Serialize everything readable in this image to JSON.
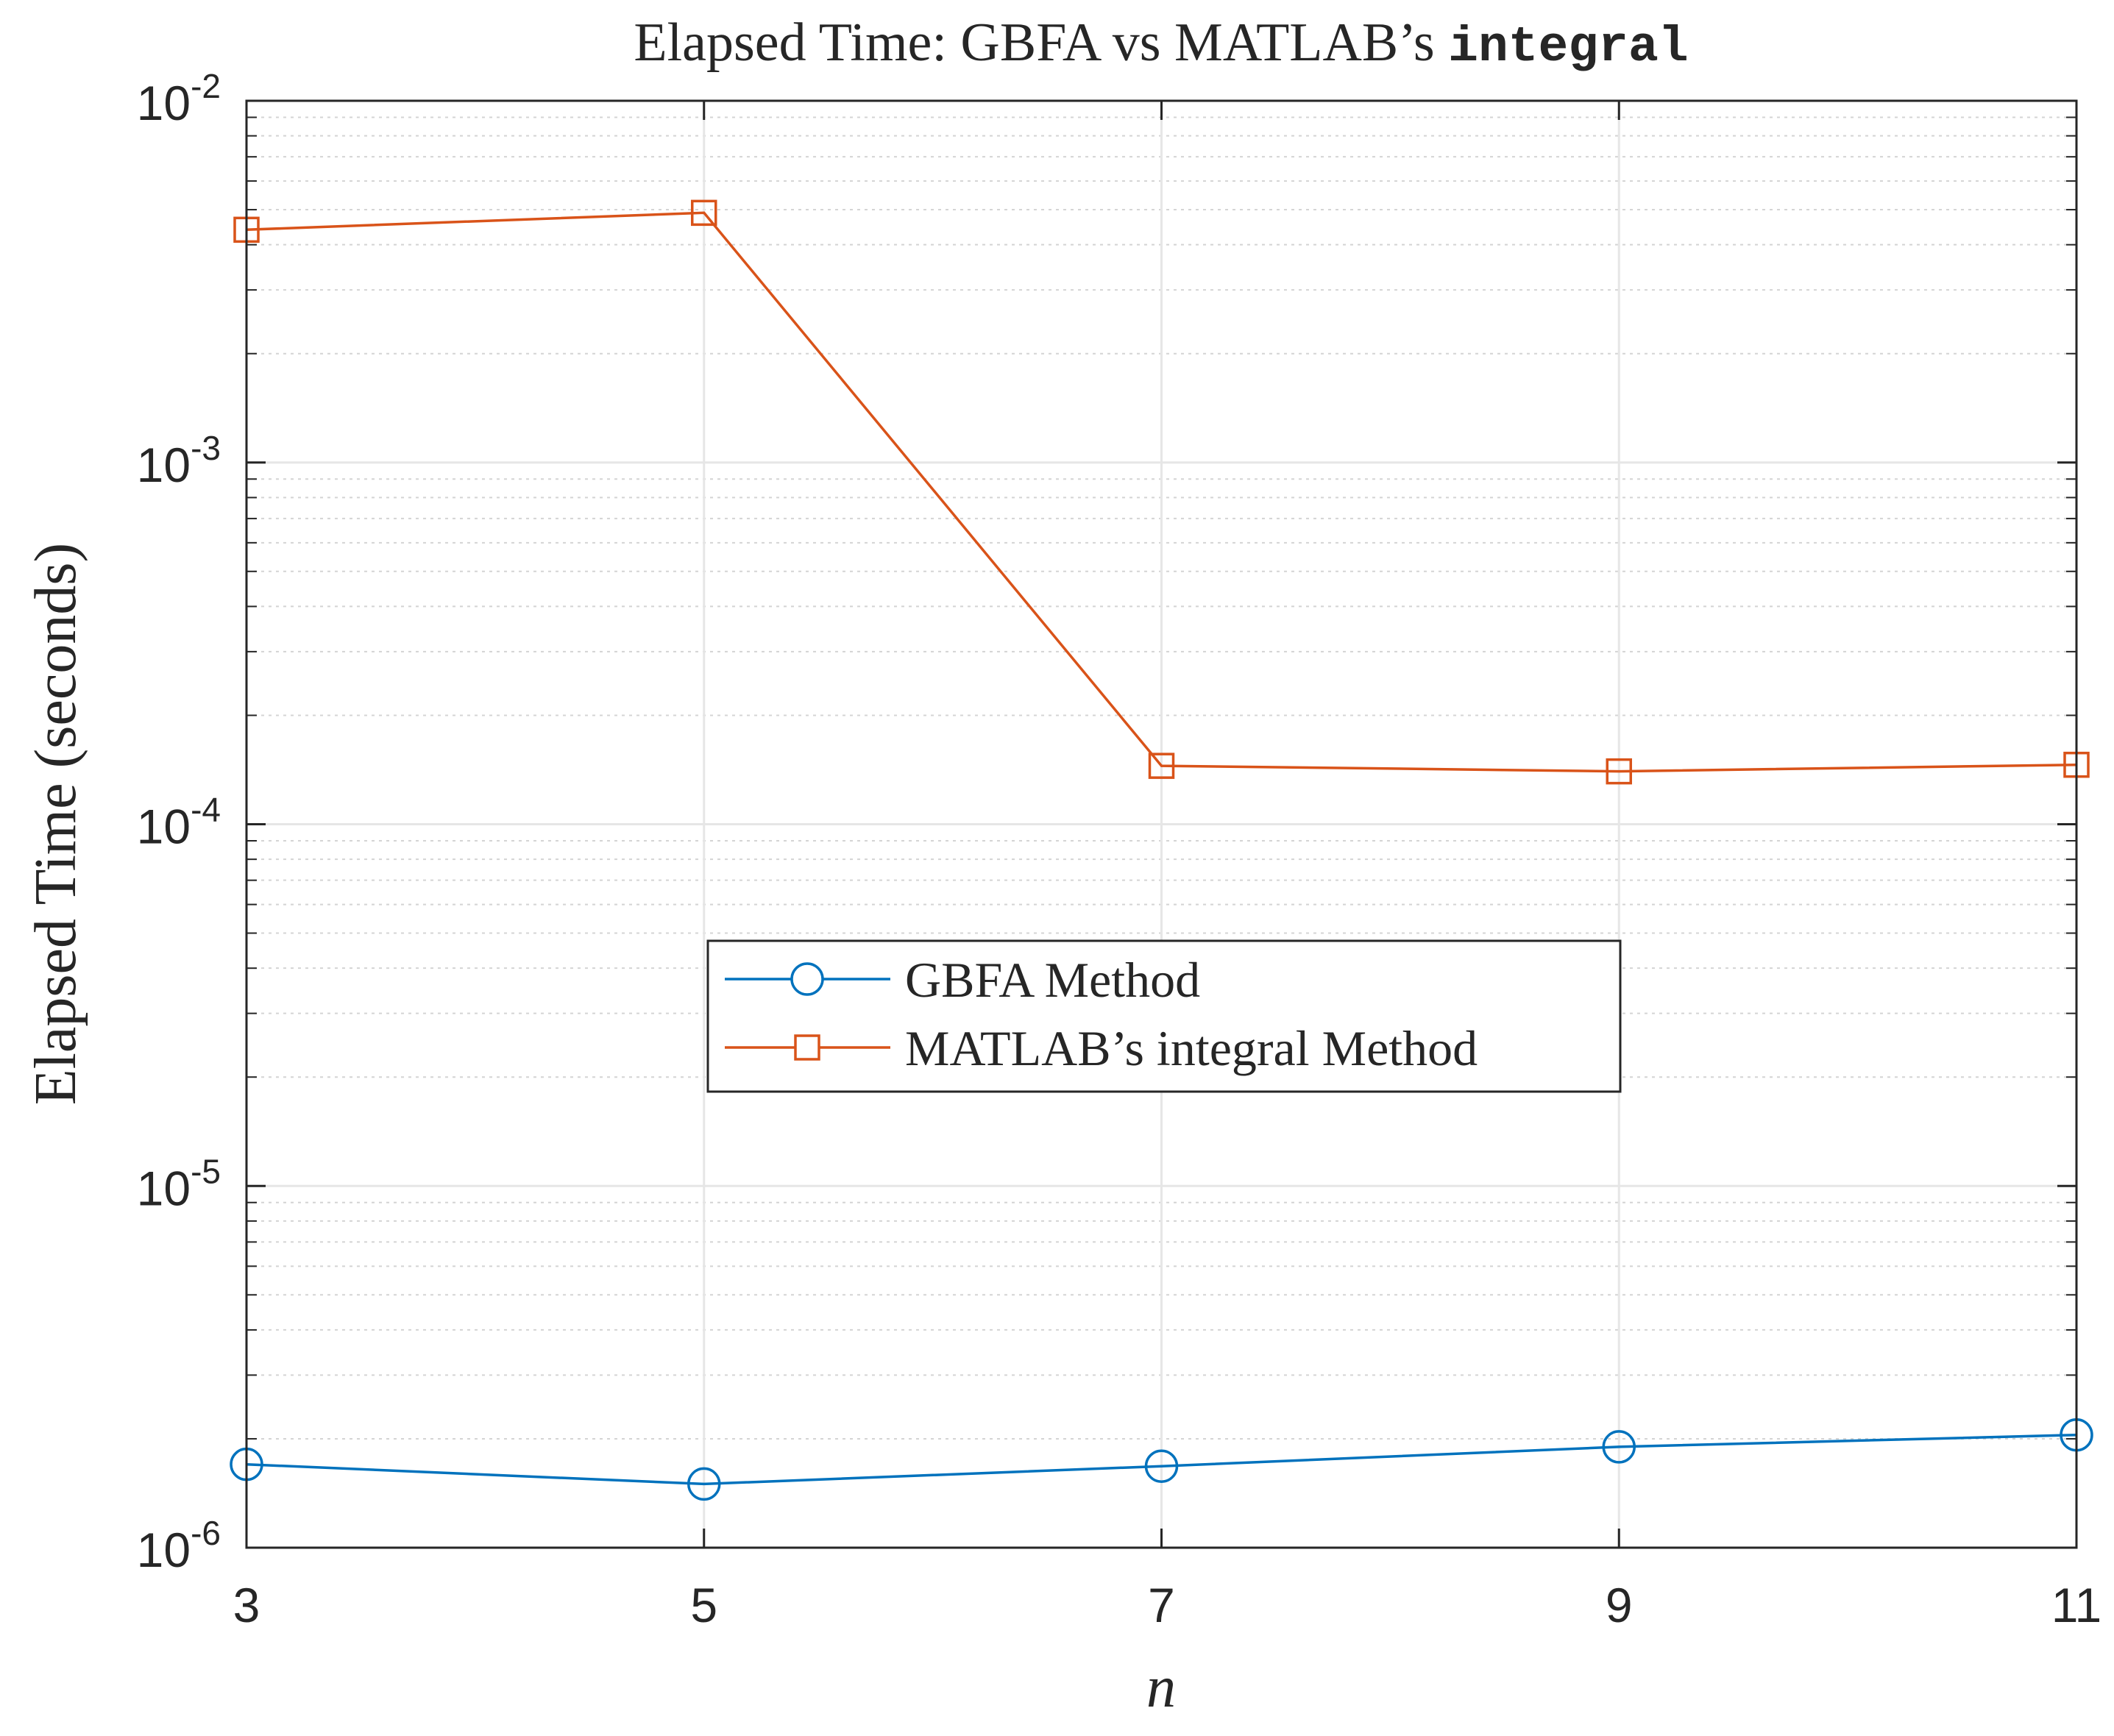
{
  "chart_data": {
    "type": "line",
    "title": {
      "prefix": "Elapsed Time: GBFA vs MATLAB’s ",
      "code": "integral"
    },
    "xlabel": "n",
    "ylabel": "Elapsed Time (seconds)",
    "x": [
      3,
      5,
      7,
      9,
      11
    ],
    "xlim": [
      3,
      11
    ],
    "x_ticks": [
      "3",
      "5",
      "7",
      "9",
      "11"
    ],
    "yscale": "log",
    "ylim": [
      1e-06,
      0.01
    ],
    "y_ticks": [
      {
        "value": 1e-06,
        "base": "10",
        "exp": "-6"
      },
      {
        "value": 1e-05,
        "base": "10",
        "exp": "-5"
      },
      {
        "value": 0.0001,
        "base": "10",
        "exp": "-4"
      },
      {
        "value": 0.001,
        "base": "10",
        "exp": "-3"
      },
      {
        "value": 0.01,
        "base": "10",
        "exp": "-2"
      }
    ],
    "grid": true,
    "minor_grid": true,
    "legend_position": "center",
    "series": [
      {
        "name": "GBFA Method",
        "marker": "circle",
        "color": "#0072BD",
        "values": [
          1.7e-06,
          1.5e-06,
          1.68e-06,
          1.9e-06,
          2.05e-06
        ]
      },
      {
        "name": "MATLAB’s integral Method",
        "marker": "square",
        "color": "#D95319",
        "values": [
          0.0044,
          0.0049,
          0.000145,
          0.00014,
          0.000146
        ]
      }
    ]
  }
}
